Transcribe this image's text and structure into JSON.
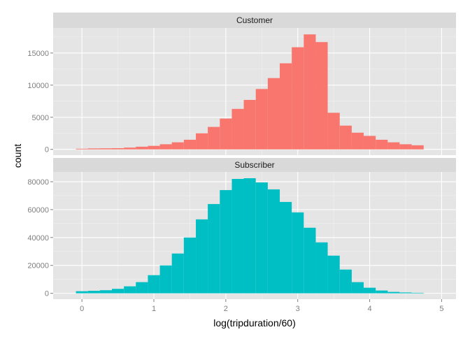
{
  "chart_data": {
    "type": "bar",
    "xlabel": "log(tripduration/60)",
    "ylabel": "count",
    "x_ticks": [
      0,
      1,
      2,
      3,
      4,
      5
    ],
    "xlim": [
      -0.4,
      5.2
    ],
    "bin_width": 0.1667,
    "bin_centers": [
      0.0,
      0.167,
      0.333,
      0.5,
      0.667,
      0.833,
      1.0,
      1.167,
      1.333,
      1.5,
      1.667,
      1.833,
      2.0,
      2.167,
      2.333,
      2.5,
      2.667,
      2.833,
      3.0,
      3.167,
      3.333,
      3.5,
      3.667,
      3.833,
      4.0,
      4.167,
      4.333,
      4.5,
      4.667
    ],
    "facets": [
      {
        "label": "Customer",
        "color": "#F8766D",
        "y_ticks": [
          0,
          5000,
          10000,
          15000
        ],
        "y_tick_labels": [
          "0",
          "5000",
          "10000",
          "15000"
        ],
        "ylim": [
          -900,
          18900
        ],
        "values": [
          100,
          150,
          170,
          190,
          280,
          420,
          550,
          800,
          1100,
          1500,
          2500,
          3500,
          4800,
          6300,
          7700,
          9400,
          11100,
          13400,
          15900,
          17900,
          16700,
          5700,
          3700,
          2600,
          2100,
          1500,
          1100,
          800,
          640
        ]
      },
      {
        "label": "Subscriber",
        "color": "#00BFC4",
        "y_ticks": [
          0,
          20000,
          40000,
          60000,
          80000
        ],
        "y_tick_labels": [
          "0",
          "20000",
          "40000",
          "60000",
          "80000"
        ],
        "ylim": [
          -4200,
          87000
        ],
        "values": [
          1500,
          1800,
          2200,
          3200,
          5000,
          8000,
          13000,
          20000,
          28500,
          40000,
          53000,
          64000,
          74000,
          82000,
          82500,
          79500,
          74500,
          65500,
          58000,
          47000,
          36500,
          27000,
          17000,
          8000,
          4000,
          2000,
          1000,
          600,
          350
        ]
      }
    ]
  }
}
